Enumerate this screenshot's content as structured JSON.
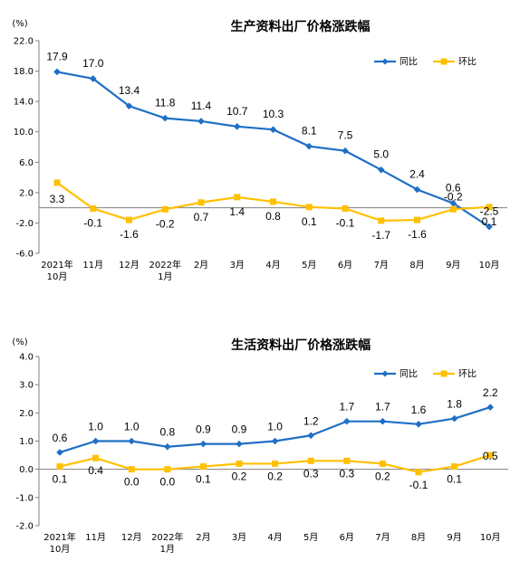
{
  "chart_data": [
    {
      "type": "line",
      "title": "生产资料出厂价格涨跌幅",
      "ylabel": "(%)",
      "categories": [
        "2021年\n10月",
        "11月",
        "12月",
        "2022年\n1月",
        "2月",
        "3月",
        "4月",
        "5月",
        "6月",
        "7月",
        "8月",
        "9月",
        "10月"
      ],
      "ylim": [
        -6.0,
        22.0
      ],
      "yticks": [
        "22.0",
        "18.0",
        "14.0",
        "10.0",
        "6.0",
        "2.0",
        "-2.0",
        "-6.0"
      ],
      "series": [
        {
          "name": "同比",
          "color": "#1f6fc5",
          "values": [
            17.9,
            17.0,
            13.4,
            11.8,
            11.4,
            10.7,
            10.3,
            8.1,
            7.5,
            5.0,
            2.4,
            0.6,
            -2.5
          ]
        },
        {
          "name": "环比",
          "color": "#ffc000",
          "values": [
            3.3,
            -0.1,
            -1.6,
            -0.2,
            0.7,
            1.4,
            0.8,
            0.1,
            -0.1,
            -1.7,
            -1.6,
            -0.2,
            0.1
          ]
        }
      ],
      "legend_position": "top-right",
      "grid": false
    },
    {
      "type": "line",
      "title": "生活资料出厂价格涨跌幅",
      "ylabel": "(%)",
      "categories": [
        "2021年\n10月",
        "11月",
        "12月",
        "2022年\n1月",
        "2月",
        "3月",
        "4月",
        "5月",
        "6月",
        "7月",
        "8月",
        "9月",
        "10月"
      ],
      "ylim": [
        -2.0,
        4.0
      ],
      "yticks": [
        "4.0",
        "3.0",
        "2.0",
        "1.0",
        "0.0",
        "-1.0",
        "-2.0"
      ],
      "series": [
        {
          "name": "同比",
          "color": "#1f6fc5",
          "values": [
            0.6,
            1.0,
            1.0,
            0.8,
            0.9,
            0.9,
            1.0,
            1.2,
            1.7,
            1.7,
            1.6,
            1.8,
            2.2
          ]
        },
        {
          "name": "环比",
          "color": "#ffc000",
          "values": [
            0.1,
            0.4,
            0.0,
            0.0,
            0.1,
            0.2,
            0.2,
            0.3,
            0.3,
            0.2,
            -0.1,
            0.1,
            0.5
          ]
        }
      ],
      "legend_position": "top-right",
      "grid": false
    }
  ]
}
